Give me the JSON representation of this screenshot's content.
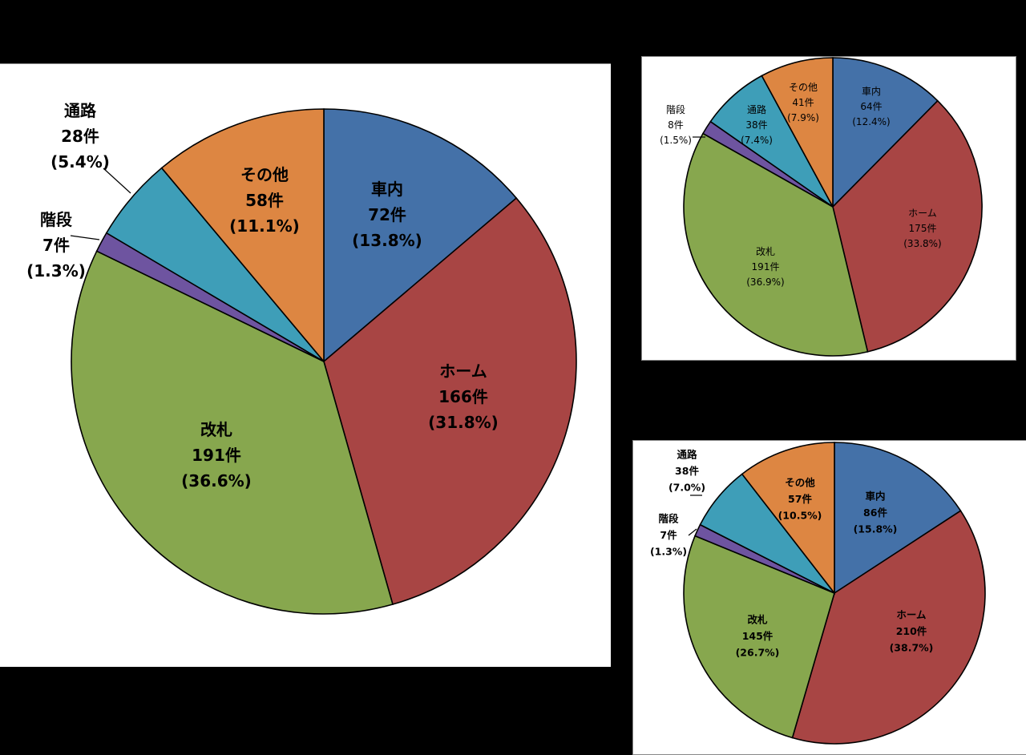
{
  "chart_data": [
    {
      "type": "pie",
      "title": "",
      "colors": {
        "車内": "#4471A8",
        "ホーム": "#A84544",
        "改札": "#87A74E",
        "階段": "#6E54A0",
        "通路": "#3E9EB8",
        "その他": "#DD8642"
      },
      "slices": [
        {
          "name": "車内",
          "count": "72件",
          "pct_label": "(13.8%)",
          "value": 13.8
        },
        {
          "name": "ホーム",
          "count": "166件",
          "pct_label": "(31.8%)",
          "value": 31.8
        },
        {
          "name": "改札",
          "count": "191件",
          "pct_label": "(36.6%)",
          "value": 36.6
        },
        {
          "name": "階段",
          "count": "7件",
          "pct_label": "(1.3%)",
          "value": 1.3
        },
        {
          "name": "通路",
          "count": "28件",
          "pct_label": "(5.4%)",
          "value": 5.4
        },
        {
          "name": "その他",
          "count": "58件",
          "pct_label": "(11.1%)",
          "value": 11.1
        }
      ]
    },
    {
      "type": "pie",
      "title": "",
      "colors": {
        "車内": "#4471A8",
        "ホーム": "#A84544",
        "改札": "#87A74E",
        "階段": "#6E54A0",
        "通路": "#3E9EB8",
        "その他": "#DD8642"
      },
      "slices": [
        {
          "name": "車内",
          "count": "64件",
          "pct_label": "(12.4%)",
          "value": 12.4
        },
        {
          "name": "ホーム",
          "count": "175件",
          "pct_label": "(33.8%)",
          "value": 33.8
        },
        {
          "name": "改札",
          "count": "191件",
          "pct_label": "(36.9%)",
          "value": 36.9
        },
        {
          "name": "階段",
          "count": "8件",
          "pct_label": "(1.5%)",
          "value": 1.5
        },
        {
          "name": "通路",
          "count": "38件",
          "pct_label": "(7.4%)",
          "value": 7.4
        },
        {
          "name": "その他",
          "count": "41件",
          "pct_label": "(7.9%)",
          "value": 7.9
        }
      ]
    },
    {
      "type": "pie",
      "title": "",
      "colors": {
        "車内": "#4471A8",
        "ホーム": "#A84544",
        "改札": "#87A74E",
        "階段": "#6E54A0",
        "通路": "#3E9EB8",
        "その他": "#DD8642"
      },
      "slices": [
        {
          "name": "車内",
          "count": "86件",
          "pct_label": "(15.8%)",
          "value": 15.8
        },
        {
          "name": "ホーム",
          "count": "210件",
          "pct_label": "(38.7%)",
          "value": 38.7
        },
        {
          "name": "改札",
          "count": "145件",
          "pct_label": "(26.7%)",
          "value": 26.7
        },
        {
          "name": "階段",
          "count": "7件",
          "pct_label": "(1.3%)",
          "value": 1.3
        },
        {
          "name": "通路",
          "count": "38件",
          "pct_label": "(7.0%)",
          "value": 7.0
        },
        {
          "name": "その他",
          "count": "57件",
          "pct_label": "(10.5%)",
          "value": 10.5
        }
      ]
    }
  ]
}
